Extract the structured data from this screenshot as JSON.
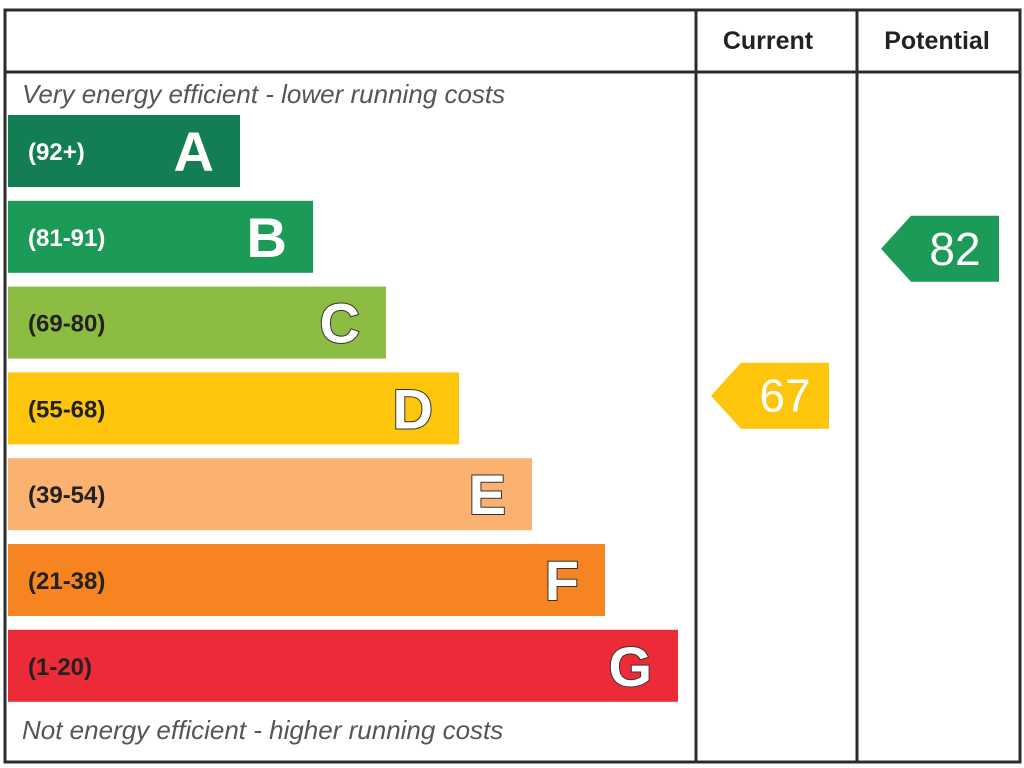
{
  "chart_data": {
    "type": "bar",
    "header": {
      "current": "Current",
      "potential": "Potential"
    },
    "top_note": "Very energy efficient - lower running costs",
    "bottom_note": "Not energy efficient - higher running costs",
    "bands": [
      {
        "letter": "A",
        "range": "(92+)",
        "color": "#137e53"
      },
      {
        "letter": "B",
        "range": "(81-91)",
        "color": "#1c9b58"
      },
      {
        "letter": "C",
        "range": "(69-80)",
        "color": "#8cbc42"
      },
      {
        "letter": "D",
        "range": "(55-68)",
        "color": "#fdc60d"
      },
      {
        "letter": "E",
        "range": "(39-54)",
        "color": "#fbb16f"
      },
      {
        "letter": "F",
        "range": "(21-38)",
        "color": "#f58421"
      },
      {
        "letter": "G",
        "range": "(1-20)",
        "color": "#ec2a38"
      }
    ],
    "ratings": {
      "current": {
        "value": 67,
        "band": "D",
        "color": "#fdc60d"
      },
      "potential": {
        "value": 82,
        "band": "B",
        "color": "#1c9b58"
      }
    }
  }
}
